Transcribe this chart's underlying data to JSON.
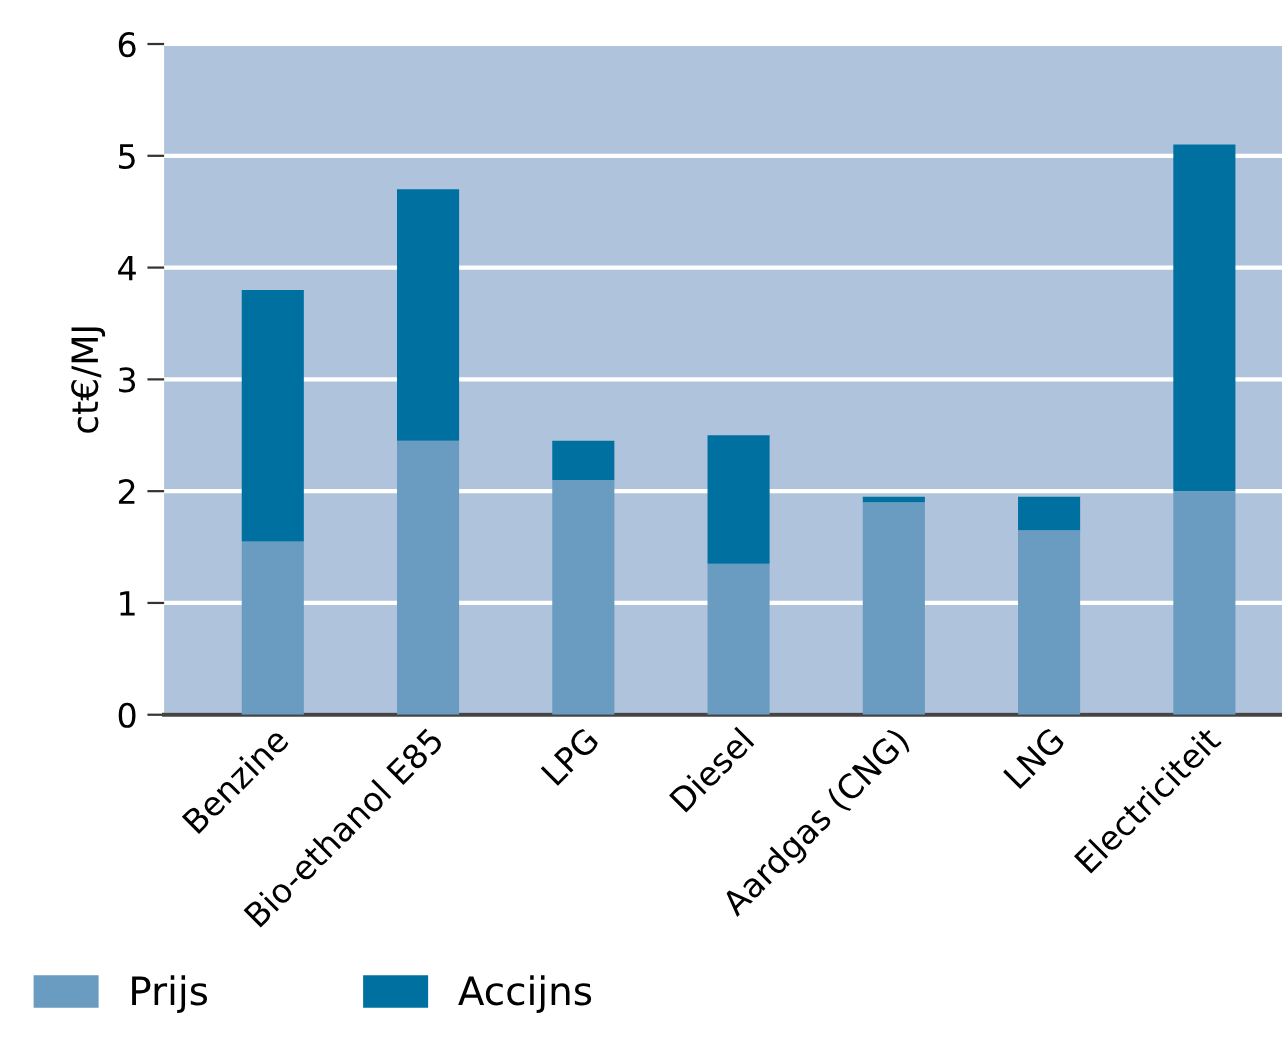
{
  "chart_data": {
    "type": "bar",
    "stacked": true,
    "ylabel": "ct€/MJ",
    "categories": [
      "Benzine",
      "Bio-ethanol E85",
      "LPG",
      "Diesel",
      "Aardgas (CNG)",
      "LNG",
      "Electriciteit"
    ],
    "series": [
      {
        "name": "Prijs",
        "color": "#6a9bc0",
        "values": [
          1.55,
          2.45,
          2.1,
          1.35,
          1.9,
          1.65,
          2.0
        ]
      },
      {
        "name": "Accijns",
        "color": "#0070a0",
        "values": [
          2.25,
          2.25,
          0.35,
          1.15,
          0.05,
          0.3,
          3.1
        ]
      }
    ],
    "ylim": [
      0,
      6
    ],
    "yticks": [
      0,
      1,
      2,
      3,
      4,
      5,
      6
    ],
    "grid": "y",
    "legend": "bottom left"
  }
}
